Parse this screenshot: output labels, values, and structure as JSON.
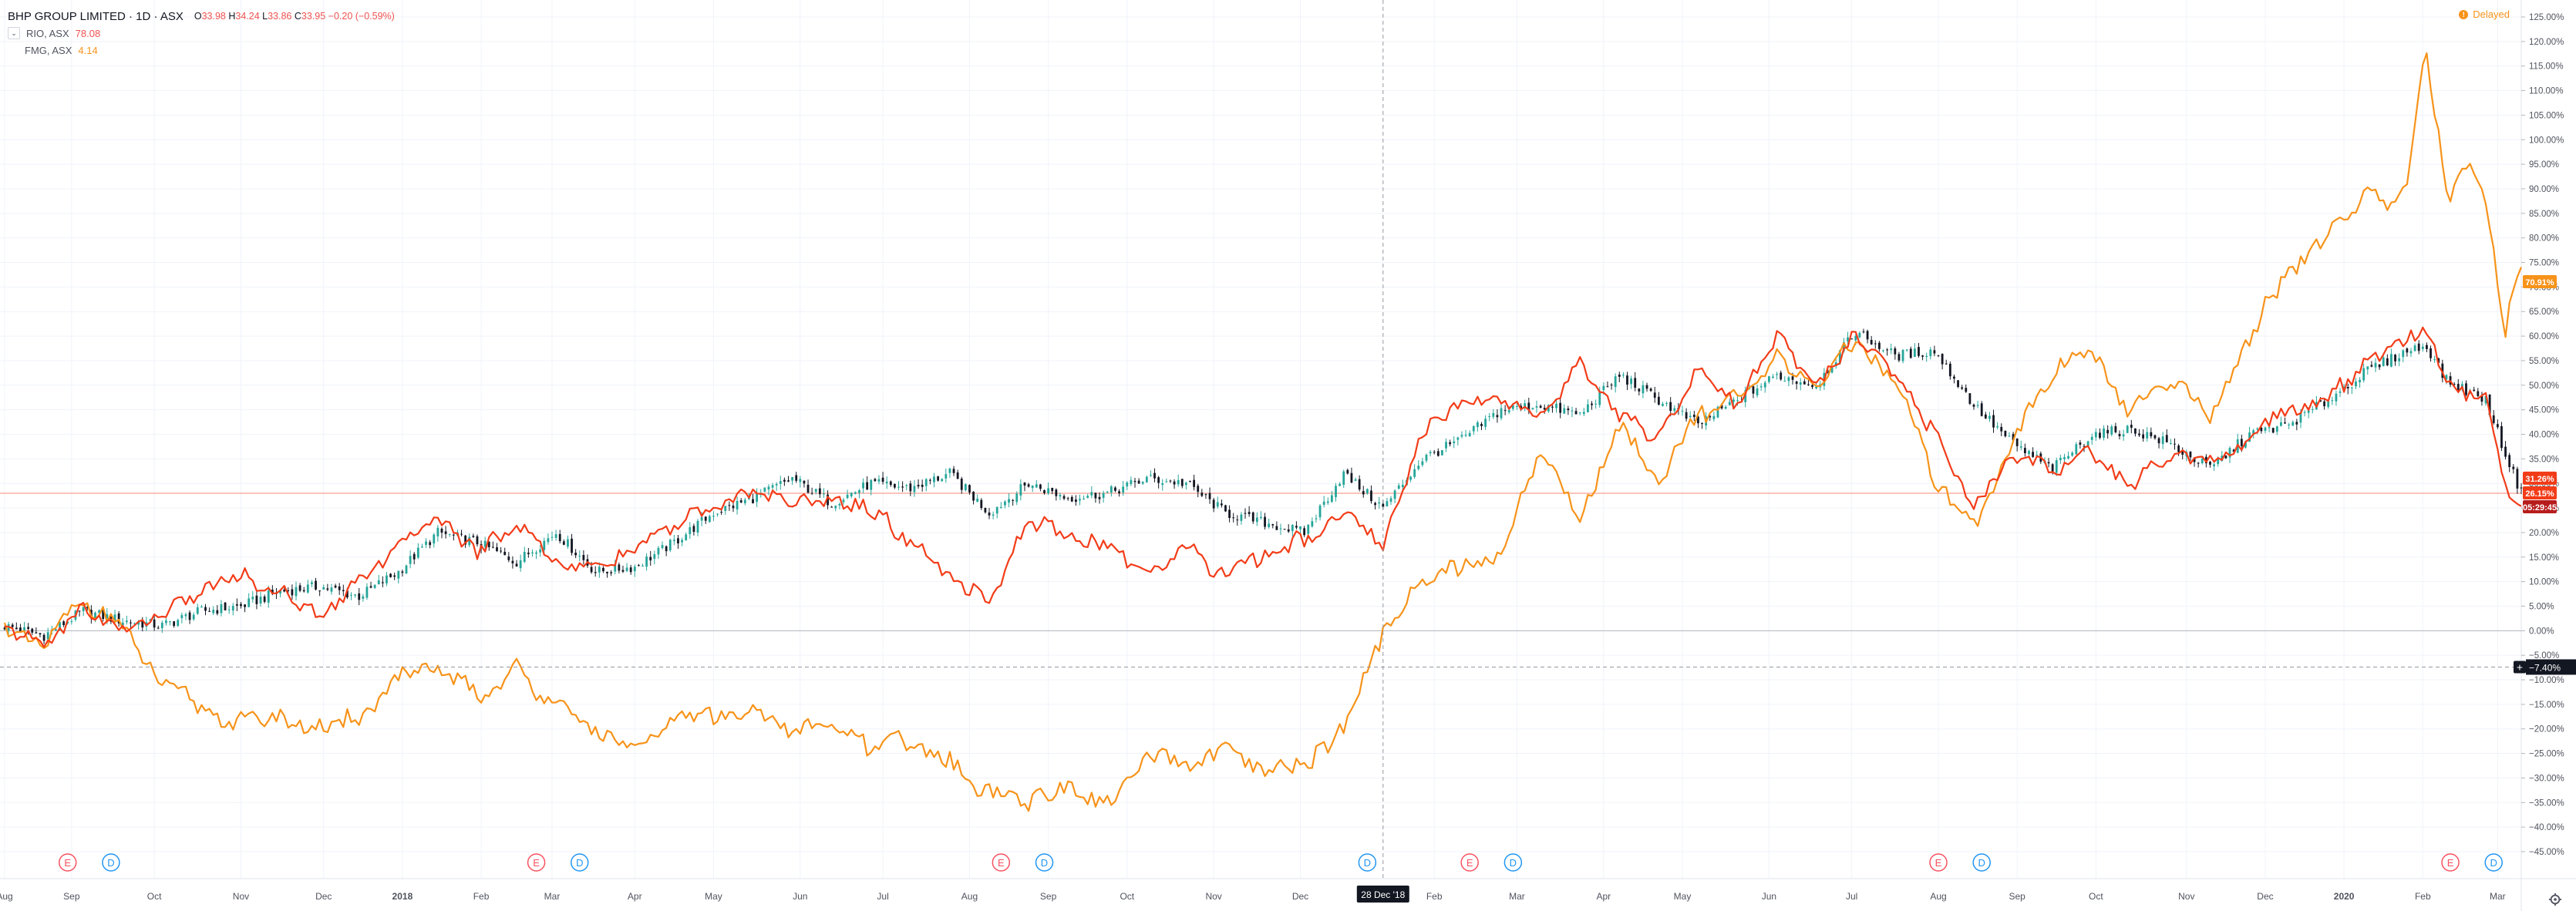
{
  "header": {
    "title": "BHP GROUP LIMITED · 1D · ASX",
    "ohlc": [
      {
        "k": "O",
        "v": "33.98"
      },
      {
        "k": "H",
        "v": "34.24"
      },
      {
        "k": "L",
        "v": "33.86"
      },
      {
        "k": "C",
        "v": "33.95"
      },
      {
        "k": "",
        "v": "−0.20 (−0.59%)"
      }
    ],
    "compare": [
      {
        "symbol": "RIO, ASX",
        "value": "78.08"
      },
      {
        "symbol": "FMG, ASX",
        "value": "4.14"
      }
    ],
    "delayed_label": "Delayed"
  },
  "colors": {
    "bhp_up": "#26a69a",
    "bhp_down": "#131722",
    "rio": "#f23c18",
    "fmg": "#f7931a",
    "grid": "#f0f3fa",
    "axis_text": "#50535e"
  },
  "chart_data": {
    "type": "line",
    "title": "BHP GROUP LIMITED · 1D · ASX",
    "ylabel": "",
    "ylim": [
      -45,
      125
    ],
    "y_ticks": [
      "125.00%",
      "120.00%",
      "115.00%",
      "110.00%",
      "105.00%",
      "100.00%",
      "95.00%",
      "90.00%",
      "85.00%",
      "80.00%",
      "75.00%",
      "70.00%",
      "65.00%",
      "60.00%",
      "55.00%",
      "50.00%",
      "45.00%",
      "40.00%",
      "35.00%",
      "30.00%",
      "25.00%",
      "20.00%",
      "15.00%",
      "10.00%",
      "5.00%",
      "0.00%",
      "−5.00%",
      "−10.00%",
      "−15.00%",
      "−20.00%",
      "−25.00%",
      "−30.00%",
      "−35.00%",
      "−40.00%",
      "−45.00%"
    ],
    "x_labels": [
      "Aug",
      "Sep",
      "Oct",
      "Nov",
      "Dec",
      "2018",
      "Feb",
      "Mar",
      "Apr",
      "May",
      "Jun",
      "Jul",
      "Aug",
      "Sep",
      "Oct",
      "Nov",
      "Dec",
      "Feb",
      "Mar",
      "Apr",
      "May",
      "Jun",
      "Jul",
      "Aug",
      "Sep",
      "Oct",
      "Nov",
      "Dec",
      "2020",
      "Feb",
      "Mar"
    ],
    "x_index": [
      0,
      17,
      38,
      60,
      81,
      101,
      121,
      139,
      160,
      180,
      202,
      223,
      245,
      265,
      285,
      307,
      329,
      363,
      384,
      406,
      426,
      448,
      469,
      491,
      511,
      531,
      554,
      574,
      594,
      614,
      633
    ],
    "n": 640,
    "series": [
      {
        "name": "BHP",
        "style": "candles",
        "x": [
          0,
          10,
          20,
          30,
          40,
          50,
          60,
          70,
          80,
          90,
          100,
          110,
          120,
          130,
          140,
          150,
          160,
          170,
          180,
          190,
          200,
          210,
          220,
          230,
          240,
          250,
          260,
          270,
          280,
          290,
          300,
          310,
          320,
          330,
          340,
          350,
          360,
          370,
          380,
          390,
          400,
          410,
          420,
          430,
          440,
          450,
          460,
          470,
          480,
          490,
          500,
          510,
          520,
          530,
          540,
          550,
          560,
          570,
          580,
          590,
          600,
          605,
          610,
          615,
          620,
          625,
          630,
          635,
          639
        ],
        "y": [
          1,
          -1,
          4,
          2,
          1,
          4,
          5,
          8,
          9,
          7,
          12,
          20,
          18,
          14,
          20,
          12,
          13,
          18,
          24,
          27,
          31,
          26,
          30,
          29,
          32,
          24,
          30,
          27,
          28,
          31,
          30,
          24,
          22,
          20,
          32,
          25,
          35,
          39,
          45,
          46,
          44,
          52,
          47,
          42,
          47,
          52,
          50,
          61,
          56,
          57,
          46,
          38,
          33,
          40,
          41,
          38,
          33,
          40,
          42,
          47,
          53,
          55,
          57,
          58,
          51,
          49,
          47,
          36,
          28
        ]
      },
      {
        "name": "RIO",
        "x": [
          0,
          10,
          20,
          30,
          40,
          50,
          60,
          70,
          80,
          90,
          100,
          110,
          120,
          130,
          140,
          150,
          160,
          170,
          180,
          190,
          200,
          210,
          220,
          230,
          240,
          250,
          260,
          270,
          280,
          290,
          300,
          310,
          320,
          330,
          340,
          350,
          360,
          370,
          380,
          390,
          400,
          410,
          420,
          430,
          440,
          450,
          460,
          470,
          480,
          490,
          500,
          510,
          520,
          530,
          540,
          550,
          560,
          570,
          580,
          590,
          600,
          605,
          610,
          615,
          620,
          625,
          630,
          635,
          639
        ],
        "y": [
          0,
          -3,
          5,
          0,
          3,
          8,
          11,
          8,
          3,
          10,
          18,
          23,
          16,
          22,
          14,
          14,
          16,
          22,
          25,
          28,
          26,
          26,
          25,
          18,
          11,
          6,
          22,
          20,
          16,
          12,
          17,
          11,
          16,
          19,
          24,
          18,
          40,
          46,
          47,
          44,
          54,
          43,
          40,
          54,
          46,
          60,
          49,
          61,
          53,
          40,
          25,
          35,
          33,
          36,
          30,
          36,
          34,
          40,
          44,
          47,
          55,
          57,
          60,
          62,
          51,
          48,
          47,
          30,
          26
        ]
      },
      {
        "name": "FMG",
        "x": [
          0,
          10,
          20,
          30,
          40,
          50,
          60,
          70,
          80,
          90,
          100,
          110,
          120,
          130,
          140,
          150,
          160,
          170,
          180,
          190,
          200,
          210,
          220,
          230,
          240,
          250,
          260,
          270,
          280,
          290,
          300,
          310,
          320,
          330,
          340,
          350,
          360,
          370,
          380,
          390,
          400,
          410,
          420,
          430,
          440,
          450,
          460,
          470,
          480,
          490,
          500,
          510,
          520,
          530,
          540,
          550,
          560,
          570,
          580,
          590,
          600,
          605,
          610,
          615,
          620,
          625,
          630,
          635,
          639
        ],
        "y": [
          0,
          -3,
          7,
          0,
          -11,
          -15,
          -19,
          -18,
          -20,
          -18,
          -10,
          -8,
          -13,
          -8,
          -15,
          -20,
          -25,
          -18,
          -17,
          -16,
          -20,
          -19,
          -24,
          -22,
          -27,
          -33,
          -35,
          -31,
          -36,
          -25,
          -27,
          -25,
          -30,
          -27,
          -20,
          -1,
          10,
          13,
          15,
          37,
          23,
          41,
          31,
          44,
          48,
          55,
          50,
          59,
          52,
          31,
          22,
          39,
          53,
          57,
          44,
          52,
          44,
          60,
          74,
          80,
          90,
          86,
          92,
          118,
          89,
          95,
          88,
          62,
          73
        ]
      }
    ],
    "current_values": {
      "FMG": "70.91%",
      "RIO": "31.26%",
      "BHP": "26.15%",
      "countdown": "05:29:45"
    },
    "crosshair": {
      "x_label": "28 Dec '18",
      "y_label": "−7.40%",
      "x_index": 350,
      "y_value": -7.4
    },
    "events": [
      {
        "type": "E",
        "x_index": 16
      },
      {
        "type": "D",
        "x_index": 27
      },
      {
        "type": "E",
        "x_index": 135
      },
      {
        "type": "D",
        "x_index": 146
      },
      {
        "type": "E",
        "x_index": 253
      },
      {
        "type": "D",
        "x_index": 264
      },
      {
        "type": "D",
        "x_index": 346
      },
      {
        "type": "E",
        "x_index": 372
      },
      {
        "type": "D",
        "x_index": 383
      },
      {
        "type": "E",
        "x_index": 491
      },
      {
        "type": "D",
        "x_index": 502
      },
      {
        "type": "E",
        "x_index": 621
      },
      {
        "type": "D",
        "x_index": 632
      }
    ],
    "grid": true,
    "legend": "top-left"
  }
}
